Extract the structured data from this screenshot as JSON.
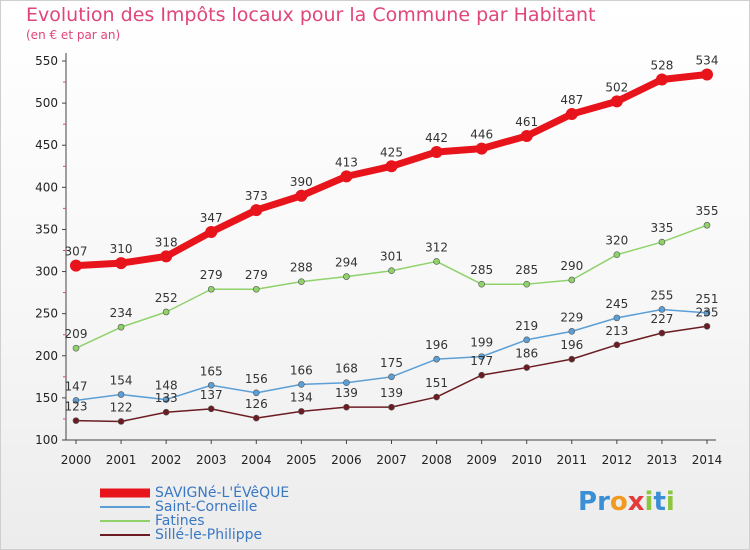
{
  "header": {
    "title": "Evolution des Impôts locaux pour la Commune par Habitant",
    "subtitle": "(en € et par an)"
  },
  "logo": {
    "text": "Proxiti"
  },
  "chart_data": {
    "type": "line",
    "title": "Evolution des Impôts locaux pour la Commune par Habitant",
    "subtitle": "(en € et par an)",
    "xlabel": "",
    "ylabel": "",
    "x": [
      2000,
      2001,
      2002,
      2003,
      2004,
      2005,
      2006,
      2007,
      2008,
      2009,
      2010,
      2011,
      2012,
      2013,
      2014
    ],
    "ylim": [
      100,
      550
    ],
    "yticks": [
      100,
      150,
      200,
      250,
      300,
      350,
      400,
      450,
      500,
      550
    ],
    "grid": false,
    "legend_position": "bottom-left",
    "series": [
      {
        "name": "SAVIGNé-L'ÉVêQUE",
        "color": "#e8141c",
        "values": [
          307,
          310,
          318,
          347,
          373,
          390,
          413,
          425,
          442,
          446,
          461,
          487,
          502,
          528,
          534
        ]
      },
      {
        "name": "Saint-Corneille",
        "color": "#5b9fd6",
        "values": [
          147,
          154,
          148,
          165,
          156,
          166,
          168,
          175,
          196,
          199,
          219,
          229,
          245,
          255,
          251
        ]
      },
      {
        "name": "Fatines",
        "color": "#8fd26a",
        "values": [
          209,
          234,
          252,
          279,
          279,
          288,
          294,
          301,
          312,
          285,
          285,
          290,
          320,
          335,
          355
        ]
      },
      {
        "name": "Sillé-le-Philippe",
        "color": "#6b1c22",
        "values": [
          123,
          122,
          133,
          137,
          126,
          134,
          139,
          139,
          151,
          177,
          186,
          196,
          213,
          227,
          235
        ]
      }
    ]
  }
}
